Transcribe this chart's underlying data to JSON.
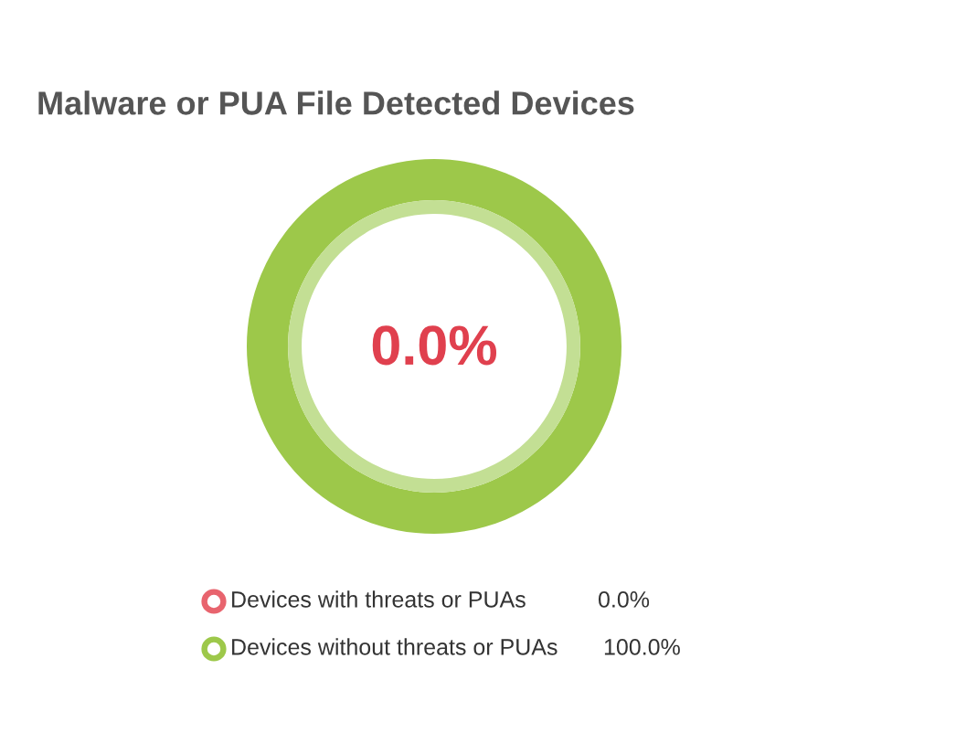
{
  "chart_data": {
    "type": "donut",
    "title": "Malware or PUA File Detected Devices",
    "categories": [
      "Devices with threats or PUAs",
      "Devices without threats or PUAs"
    ],
    "values": [
      0,
      100
    ],
    "colors": [
      "#e8646e",
      "#9dc84a"
    ],
    "value_labels": [
      "0.0%",
      "100.0%"
    ],
    "annotations": [
      "0.0%"
    ],
    "legend": "bottom"
  }
}
